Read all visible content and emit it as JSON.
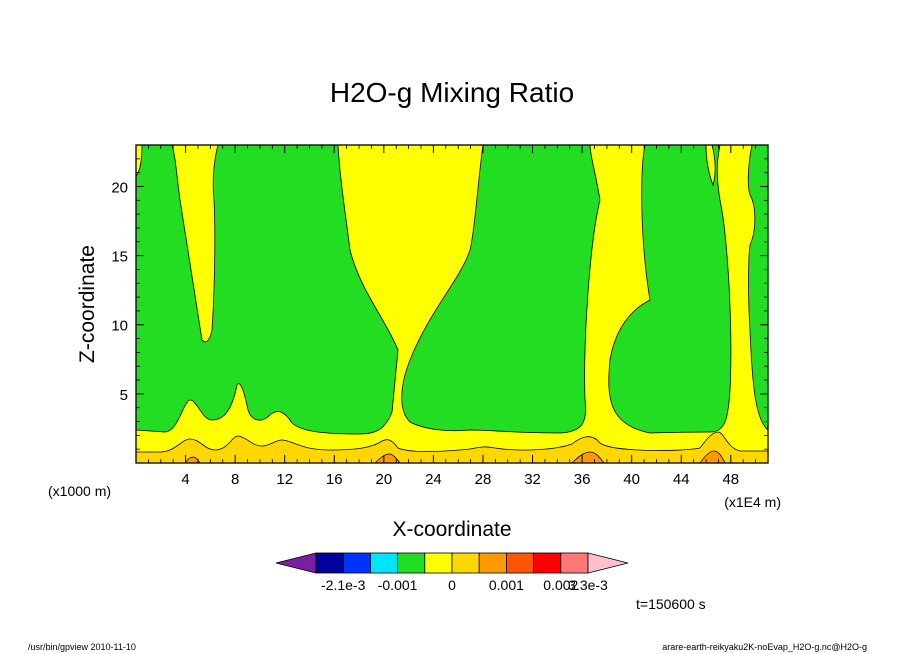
{
  "chart_data": {
    "type": "heatmap",
    "title": "H2O-g Mixing Ratio",
    "xlabel": "X-coordinate",
    "ylabel": "Z-coordinate",
    "x_unit_note": "(x1E4 m)",
    "y_unit_note": "(x1000 m)",
    "xlim": [
      0,
      51
    ],
    "ylim": [
      0,
      23
    ],
    "x_ticks": [
      4,
      8,
      12,
      16,
      20,
      24,
      28,
      32,
      36,
      40,
      44,
      48
    ],
    "x_tick_labels": [
      "4",
      "8",
      "12",
      "16",
      "20",
      "24",
      "28",
      "32",
      "36",
      "40",
      "44",
      "48"
    ],
    "y_ticks": [
      5,
      10,
      15,
      20
    ],
    "y_tick_labels": [
      "5",
      "10",
      "15",
      "20"
    ],
    "time_label": "t=150600 s",
    "colorbar": {
      "colors": [
        "#7a1fa2",
        "#0000a0",
        "#0033ff",
        "#00e5ff",
        "#22dd22",
        "#ffff00",
        "#ffd700",
        "#ff9900",
        "#ff5500",
        "#ff0000",
        "#ff7777",
        "#ffc0cb"
      ],
      "labels": [
        "-2.1e-3",
        "-0.001",
        "0",
        "0.001",
        "0.002",
        "3.3e-3"
      ],
      "label_boundaries": [
        2,
        4,
        6,
        8,
        10,
        11
      ]
    },
    "fill_colors": {
      "green": "#22dd22",
      "yellow": "#ffff00",
      "gold": "#ffd700",
      "orange": "#ff9900"
    },
    "footer_left": "/usr/bin/gpview  2010-11-10",
    "footer_right": "arare-earth-reikyaku2K-noEvap_H2O-g.nc@H2O-g"
  }
}
